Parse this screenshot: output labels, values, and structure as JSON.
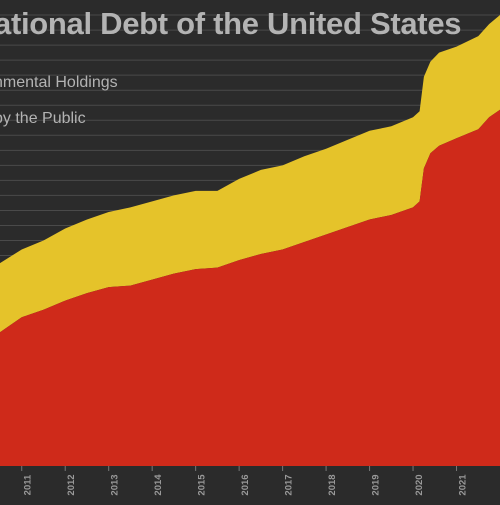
{
  "chart_data": {
    "type": "area",
    "stacked": true,
    "title": "ational Debt of the United States",
    "legend": [
      "nmental Holdings",
      "by the Public"
    ],
    "xlim": [
      2010.5,
      2022.0
    ],
    "ylim": [
      0,
      31
    ],
    "grid": true,
    "x_ticks": [
      "2011",
      "2012",
      "2013",
      "2014",
      "2015",
      "2016",
      "2017",
      "2018",
      "2019",
      "2020",
      "2021"
    ],
    "colors": {
      "background": "#2b2b2b",
      "intragovernmental": "#e5c32a",
      "public": "#cf2a1a",
      "grid": "#4a4a4a",
      "text": "#b3b3b3"
    },
    "x": [
      2010.5,
      2011.0,
      2011.5,
      2012.0,
      2012.5,
      2013.0,
      2013.5,
      2014.0,
      2014.5,
      2015.0,
      2015.5,
      2016.0,
      2016.5,
      2017.0,
      2017.5,
      2018.0,
      2018.5,
      2019.0,
      2019.5,
      2020.0,
      2020.15,
      2020.25,
      2020.4,
      2020.6,
      2021.0,
      2021.5,
      2021.75,
      2022.0
    ],
    "series": [
      {
        "name": "by the Public",
        "values": [
          8.9,
          9.9,
          10.4,
          11.0,
          11.5,
          11.9,
          12.0,
          12.4,
          12.8,
          13.1,
          13.2,
          13.7,
          14.1,
          14.4,
          14.9,
          15.4,
          15.9,
          16.4,
          16.7,
          17.2,
          17.6,
          19.8,
          20.8,
          21.3,
          21.8,
          22.4,
          23.2,
          23.7
        ]
      },
      {
        "name": "nmental Holdings",
        "values": [
          4.6,
          4.5,
          4.6,
          4.8,
          4.9,
          5.0,
          5.2,
          5.2,
          5.2,
          5.2,
          5.1,
          5.4,
          5.6,
          5.6,
          5.7,
          5.7,
          5.8,
          5.9,
          5.9,
          6.0,
          6.0,
          6.1,
          6.1,
          6.2,
          6.1,
          6.2,
          6.2,
          6.3
        ]
      }
    ]
  }
}
